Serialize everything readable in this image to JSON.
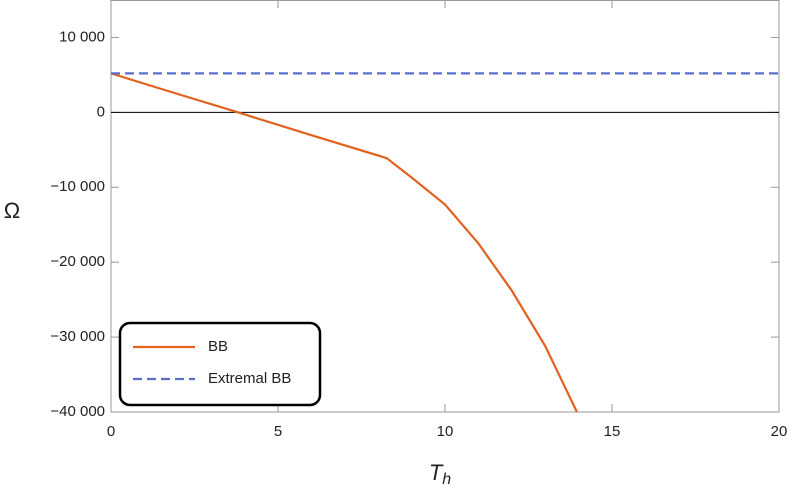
{
  "chart_data": {
    "type": "line",
    "xlabel": {
      "text": "T",
      "subscript": "h"
    },
    "ylabel": "Ω",
    "xlim": [
      0,
      20
    ],
    "ylim": [
      -40000,
      15000
    ],
    "xticks": [
      0,
      5,
      10,
      15,
      20
    ],
    "yticks": [
      {
        "value": 10000,
        "label": "10 000"
      },
      0,
      {
        "value": -10000,
        "label": "−10 000"
      },
      {
        "value": -20000,
        "label": "−20 000"
      },
      {
        "value": -30000,
        "label": "−30 000"
      },
      {
        "value": -40000,
        "label": "−40 000"
      }
    ],
    "legend": "bottom-left",
    "series": [
      {
        "name": "BB",
        "color": "#e2611e",
        "dash": false,
        "x": [
          0,
          2,
          3.8,
          6,
          8.25,
          9,
          10,
          11,
          12,
          13,
          13.95
        ],
        "values": [
          5200,
          2450,
          0,
          -3050,
          -6100,
          -8700,
          -12300,
          -17500,
          -23800,
          -31200,
          -40000
        ]
      },
      {
        "name": "Extremal BB",
        "color": "#5c6fc8",
        "dash": true,
        "x": [
          0,
          20
        ],
        "values": [
          5200,
          5200
        ]
      }
    ]
  }
}
